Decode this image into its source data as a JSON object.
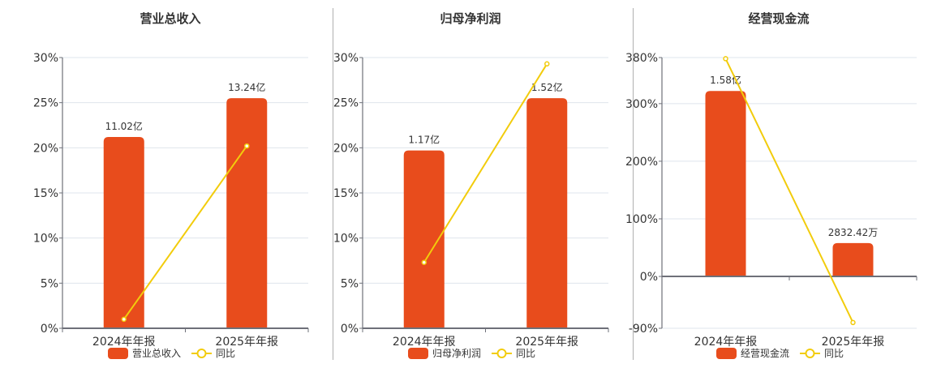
{
  "colors": {
    "bar": "#E84C1C",
    "line": "#F2CC0C",
    "grid": "#dfe4ec",
    "axis": "#6e7079",
    "text": "#333333"
  },
  "chart_data": [
    {
      "type": "bar+line",
      "title": "营业总收入",
      "categories": [
        "2024年年报",
        "2025年年报"
      ],
      "series": [
        {
          "name": "营业总收入",
          "type": "bar",
          "labels": [
            "11.02亿",
            "13.24亿"
          ],
          "values_yi": [
            11.02,
            13.24
          ],
          "axis_pct": [
            21.2,
            25.5
          ]
        },
        {
          "name": "同比",
          "type": "line",
          "values": [
            1.0,
            20.2
          ]
        }
      ],
      "yaxis": {
        "ticks": [
          "30%",
          "25%",
          "20%",
          "15%",
          "10%",
          "5%",
          "0%"
        ],
        "min": 0,
        "max": 30
      },
      "legend": [
        "营业总收入",
        "同比"
      ]
    },
    {
      "type": "bar+line",
      "title": "归母净利润",
      "categories": [
        "2024年年报",
        "2025年年报"
      ],
      "series": [
        {
          "name": "归母净利润",
          "type": "bar",
          "labels": [
            "1.17亿",
            "1.52亿"
          ],
          "values_yi": [
            1.17,
            1.52
          ],
          "axis_pct": [
            19.7,
            25.5
          ]
        },
        {
          "name": "同比",
          "type": "line",
          "values": [
            7.3,
            29.3
          ]
        }
      ],
      "yaxis": {
        "ticks": [
          "30%",
          "25%",
          "20%",
          "15%",
          "10%",
          "5%",
          "0%"
        ],
        "min": 0,
        "max": 30
      },
      "legend": [
        "归母净利润",
        "同比"
      ]
    },
    {
      "type": "bar+line",
      "title": "经营现金流",
      "categories": [
        "2024年年报",
        "2025年年报"
      ],
      "series": [
        {
          "name": "经营现金流",
          "type": "bar",
          "labels": [
            "1.58亿",
            "2832.42万"
          ],
          "values": [
            1.58,
            0.2832
          ],
          "axis_pct": [
            322,
            58
          ]
        },
        {
          "name": "同比",
          "type": "line",
          "values": [
            378,
            -80
          ]
        }
      ],
      "yaxis": {
        "ticks": [
          "380%",
          "300%",
          "200%",
          "100%",
          "0%",
          "-90%"
        ],
        "min": -90,
        "max": 380
      },
      "legend": [
        "经营现金流",
        "同比"
      ]
    }
  ]
}
